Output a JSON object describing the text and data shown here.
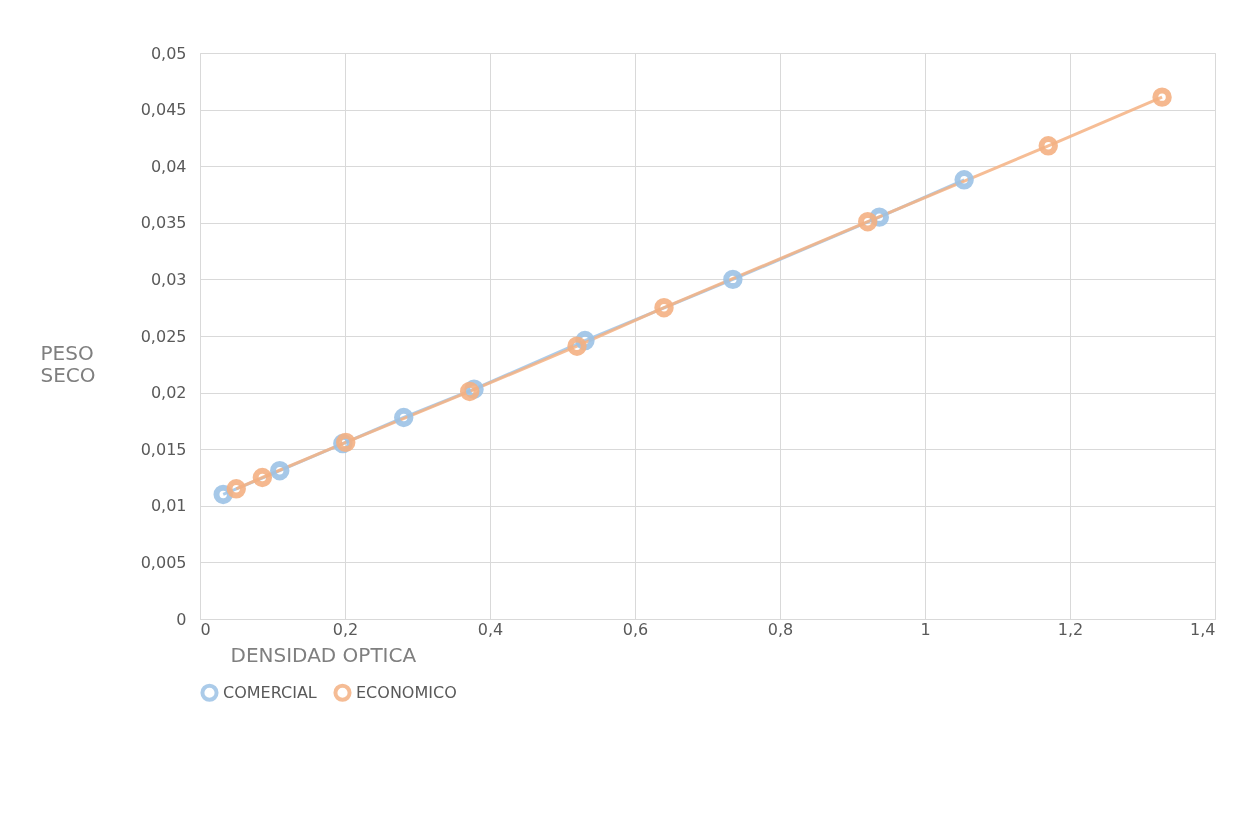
{
  "chart_data": {
    "type": "line",
    "xlabel": "DENSIDAD OPTICA",
    "ylabel": "PESO SECO",
    "series": [
      {
        "name": "COMERCIAL",
        "color": "#9dc3e6",
        "x": [
          0.032,
          0.11,
          0.197,
          0.281,
          0.378,
          0.531,
          0.735,
          0.937,
          1.054
        ],
        "values": [
          0.011,
          0.0131,
          0.0155,
          0.0178,
          0.0203,
          0.0246,
          0.03,
          0.0355,
          0.0388
        ]
      },
      {
        "name": "ECONOMICO",
        "color": "#f4b183",
        "x": [
          0.05,
          0.086,
          0.201,
          0.372,
          0.52,
          0.64,
          0.921,
          1.17,
          1.327
        ],
        "values": [
          0.0115,
          0.0125,
          0.0156,
          0.0201,
          0.0241,
          0.0275,
          0.0351,
          0.0418,
          0.0461
        ]
      }
    ],
    "xlim": [
      0,
      1.4
    ],
    "xticks": [
      0,
      {
        "value": 0.2,
        "label": "0,2"
      },
      {
        "value": 0.4,
        "label": "0,4"
      },
      {
        "value": 0.6,
        "label": "0,6"
      },
      {
        "value": 0.8,
        "label": "0,8"
      },
      1,
      {
        "value": 1.2,
        "label": "1,2"
      },
      {
        "value": 1.4,
        "label": "1,4"
      }
    ],
    "ylim": [
      0,
      0.05
    ],
    "yticks": [
      0,
      {
        "value": 0.005,
        "label": "0,005"
      },
      {
        "value": 0.01,
        "label": "0,01"
      },
      {
        "value": 0.015,
        "label": "0,015"
      },
      {
        "value": 0.02,
        "label": "0,02"
      },
      {
        "value": 0.025,
        "label": "0,025"
      },
      {
        "value": 0.03,
        "label": "0,03"
      },
      {
        "value": 0.035,
        "label": "0,035"
      },
      {
        "value": 0.04,
        "label": "0,04"
      },
      {
        "value": 0.045,
        "label": "0,045"
      },
      {
        "value": 0.05,
        "label": "0,05"
      }
    ],
    "grid": true,
    "legend": "bottom",
    "marker": "circle",
    "line_style": "solid"
  }
}
